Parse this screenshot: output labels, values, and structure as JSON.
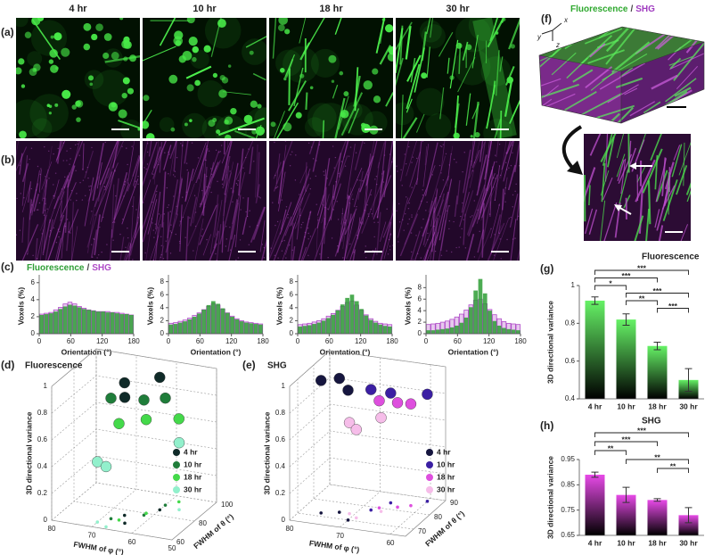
{
  "columns": [
    "4 hr",
    "10 hr",
    "18 hr",
    "30 hr"
  ],
  "panel_labels": [
    "(a)",
    "(b)",
    "(c)",
    "(d)",
    "(e)",
    "(f)",
    "(g)",
    "(h)"
  ],
  "panel_f": {
    "title": {
      "fluorescence": "Fluorescence",
      "separator": "/",
      "shg": "SHG"
    },
    "axes": [
      "x",
      "y",
      "z"
    ]
  },
  "chart_data": [
    {
      "type": "histogram",
      "bins": [
        0,
        9,
        18,
        27,
        36,
        45,
        54,
        63,
        72,
        81,
        90,
        99,
        108,
        117,
        126,
        135,
        144,
        153,
        162,
        171,
        180
      ],
      "series": [
        {
          "name": "Fluorescence",
          "color": "#2e9e35",
          "values": [
            2.2,
            2.3,
            2.4,
            2.6,
            2.9,
            3.2,
            3.4,
            3.3,
            3.1,
            2.9,
            2.8,
            2.7,
            2.6,
            2.6,
            2.5,
            2.5,
            2.4,
            2.3,
            2.3,
            2.2
          ]
        },
        {
          "name": "SHG",
          "color": "#b04cc8",
          "values": [
            2.3,
            2.4,
            2.5,
            2.8,
            3.1,
            3.5,
            3.7,
            3.5,
            3.2,
            3.0,
            2.8,
            2.7,
            2.6,
            2.6,
            2.6,
            2.5,
            2.5,
            2.4,
            2.3,
            2.2
          ]
        }
      ],
      "legend_separator": "/",
      "xlim": [
        0,
        180
      ],
      "xticks": [
        0,
        60,
        120,
        180
      ],
      "ylim": [
        0,
        6.5
      ],
      "yticks": [
        0,
        2,
        4,
        6
      ],
      "xlabel": "Orientation (°)",
      "ylabel": "Voxels (%)"
    },
    {
      "type": "histogram",
      "bins": [
        0,
        9,
        18,
        27,
        36,
        45,
        54,
        63,
        72,
        81,
        90,
        99,
        108,
        117,
        126,
        135,
        144,
        153,
        162,
        171,
        180
      ],
      "series": [
        {
          "color": "#2e9e35",
          "values": [
            1.4,
            1.5,
            1.7,
            1.9,
            2.2,
            2.6,
            3.1,
            3.7,
            4.4,
            5.0,
            4.6,
            3.9,
            3.2,
            2.6,
            2.2,
            1.9,
            1.7,
            1.6,
            1.5,
            1.4
          ]
        },
        {
          "color": "#b04cc8",
          "values": [
            1.6,
            1.7,
            1.9,
            2.1,
            2.4,
            2.8,
            3.2,
            3.7,
            4.2,
            4.6,
            4.4,
            3.8,
            3.2,
            2.7,
            2.3,
            2.0,
            1.8,
            1.7,
            1.6,
            1.5
          ]
        }
      ],
      "xlim": [
        0,
        180
      ],
      "xticks": [
        0,
        60,
        120,
        180
      ],
      "ylim": [
        0,
        8.5
      ],
      "yticks": [
        0,
        2,
        4,
        6,
        8
      ],
      "xlabel": "Orientation (°)",
      "ylabel": "Voxels (%)"
    },
    {
      "type": "histogram",
      "bins": [
        0,
        9,
        18,
        27,
        36,
        45,
        54,
        63,
        72,
        81,
        90,
        99,
        108,
        117,
        126,
        135,
        144,
        153,
        162,
        171,
        180
      ],
      "series": [
        {
          "color": "#2e9e35",
          "values": [
            1.1,
            1.2,
            1.3,
            1.5,
            1.7,
            2.0,
            2.4,
            2.9,
            3.6,
            4.5,
            5.5,
            6.0,
            5.0,
            3.8,
            2.8,
            2.1,
            1.7,
            1.4,
            1.2,
            1.1
          ]
        },
        {
          "color": "#b04cc8",
          "values": [
            1.4,
            1.5,
            1.6,
            1.8,
            2.0,
            2.3,
            2.7,
            3.1,
            3.6,
            4.2,
            4.8,
            5.0,
            4.4,
            3.6,
            2.9,
            2.3,
            1.9,
            1.6,
            1.5,
            1.4
          ]
        }
      ],
      "xlim": [
        0,
        180
      ],
      "xticks": [
        0,
        60,
        120,
        180
      ],
      "ylim": [
        0,
        8.5
      ],
      "yticks": [
        0,
        2,
        4,
        6,
        8
      ],
      "xlabel": "Orientation (°)",
      "ylabel": "Voxels (%)"
    },
    {
      "type": "histogram",
      "bins": [
        0,
        9,
        18,
        27,
        36,
        45,
        54,
        63,
        72,
        81,
        90,
        99,
        108,
        117,
        126,
        135,
        144,
        153,
        162,
        171,
        180
      ],
      "series": [
        {
          "color": "#2e9e35",
          "values": [
            0.6,
            0.6,
            0.7,
            0.8,
            0.9,
            1.1,
            1.4,
            1.9,
            2.8,
            4.6,
            7.5,
            9.5,
            7.0,
            4.0,
            2.2,
            1.4,
            1.0,
            0.8,
            0.7,
            0.6
          ]
        },
        {
          "color": "#b04cc8",
          "values": [
            1.6,
            1.7,
            1.8,
            2.0,
            2.2,
            2.5,
            2.9,
            3.4,
            4.1,
            5.0,
            5.8,
            6.0,
            5.2,
            4.2,
            3.3,
            2.6,
            2.1,
            1.8,
            1.7,
            1.6
          ]
        }
      ],
      "xlim": [
        0,
        180
      ],
      "xticks": [
        0,
        60,
        120,
        180
      ],
      "ylim": [
        0,
        9.6
      ],
      "yticks": [
        0,
        2,
        4,
        6,
        8
      ],
      "xlabel": "Orientation (°)",
      "ylabel": "Voxels (%)"
    },
    {
      "type": "scatter3d",
      "title": "Fluorescence",
      "title_color": "#2ea82e",
      "xlabel": "FWHM of φ (°)",
      "ylabel": "FWHM of θ (°)",
      "zlabel": "3D directional variance",
      "xlim": [
        80,
        50
      ],
      "xticks": [
        80,
        70,
        60,
        50
      ],
      "ylim": [
        60,
        100
      ],
      "yticks": [
        60,
        80,
        100
      ],
      "zlim": [
        0,
        1
      ],
      "zticks": [
        0,
        0.2,
        0.4,
        0.6,
        0.8,
        1
      ],
      "series": [
        {
          "name": "4 hr",
          "color": "#0f2a28",
          "x": [
            66,
            60,
            64
          ],
          "y": [
            75,
            85,
            68
          ],
          "z": [
            0.99,
            0.99,
            0.94
          ]
        },
        {
          "name": "10 hr",
          "color": "#1f7d3a",
          "x": [
            68,
            62,
            60
          ],
          "y": [
            70,
            78,
            90
          ],
          "z": [
            0.9,
            0.86,
            0.8
          ]
        },
        {
          "name": "18 hr",
          "color": "#44d94a",
          "x": [
            66,
            62,
            58
          ],
          "y": [
            70,
            80,
            95
          ],
          "z": [
            0.72,
            0.7,
            0.62
          ]
        },
        {
          "name": "30 hr",
          "color": "#92f0cc",
          "x": [
            70,
            67,
            56
          ],
          "y": [
            65,
            62,
            88
          ],
          "z": [
            0.45,
            0.45,
            0.5
          ]
        }
      ]
    },
    {
      "type": "scatter3d",
      "title": "SHG",
      "title_color": "#a03cc0",
      "xlabel": "FWHM of φ (°)",
      "ylabel": "FWHM of θ (°)",
      "zlabel": "3D directional variance",
      "xlim": [
        80,
        57
      ],
      "xticks": [
        80,
        70,
        60
      ],
      "ylim": [
        65,
        90
      ],
      "yticks": [
        70,
        80,
        90
      ],
      "zlim": [
        0,
        1
      ],
      "zticks": [
        0,
        0.2,
        0.4,
        0.6,
        0.8,
        1
      ],
      "series": [
        {
          "name": "4 hr",
          "color": "#16163f",
          "x": [
            76,
            73,
            70
          ],
          "y": [
            72,
            74,
            70
          ],
          "z": [
            0.99,
            1.0,
            0.97
          ]
        },
        {
          "name": "10 hr",
          "color": "#3b1fa3",
          "x": [
            68,
            66,
            60
          ],
          "y": [
            78,
            84,
            88
          ],
          "z": [
            0.9,
            0.82,
            0.8
          ]
        },
        {
          "name": "18 hr",
          "color": "#de4fde",
          "x": [
            67,
            64,
            62
          ],
          "y": [
            80,
            82,
            84
          ],
          "z": [
            0.8,
            0.78,
            0.76
          ]
        },
        {
          "name": "30 hr",
          "color": "#f6bde9",
          "x": [
            71,
            69,
            66
          ],
          "y": [
            74,
            72,
            78
          ],
          "z": [
            0.68,
            0.66,
            0.7
          ]
        }
      ]
    },
    {
      "type": "bar",
      "title": "Fluorescence",
      "title_color": "#2ea82e",
      "categories": [
        "4 hr",
        "10 hr",
        "18 hr",
        "30 hr"
      ],
      "values": [
        0.92,
        0.82,
        0.68,
        0.5
      ],
      "errors": [
        0.02,
        0.03,
        0.02,
        0.06
      ],
      "color": "#66f266",
      "gradient_to": "#000000",
      "ylim": [
        0.4,
        1
      ],
      "yticks": [
        0.4,
        0.6,
        0.8,
        1
      ],
      "ylabel": "3D directional variance",
      "significance": [
        {
          "between": [
            "4 hr",
            "30 hr"
          ],
          "label": "***"
        },
        {
          "between": [
            "4 hr",
            "18 hr"
          ],
          "label": "***"
        },
        {
          "between": [
            "4 hr",
            "10 hr"
          ],
          "label": "*"
        },
        {
          "between": [
            "10 hr",
            "30 hr"
          ],
          "label": "***"
        },
        {
          "between": [
            "10 hr",
            "18 hr"
          ],
          "label": "**"
        },
        {
          "between": [
            "18 hr",
            "30 hr"
          ],
          "label": "***"
        }
      ]
    },
    {
      "type": "bar",
      "title": "SHG",
      "title_color": "#a03cc0",
      "categories": [
        "4 hr",
        "10 hr",
        "18 hr",
        "30 hr"
      ],
      "values": [
        0.89,
        0.81,
        0.79,
        0.73
      ],
      "errors": [
        0.01,
        0.03,
        0.005,
        0.03
      ],
      "color": "#e84ae8",
      "gradient_to": "#000000",
      "ylim": [
        0.65,
        0.95
      ],
      "yticks": [
        0.65,
        0.75,
        0.85,
        0.95
      ],
      "ylabel": "3D directional variance",
      "significance": [
        {
          "between": [
            "4 hr",
            "30 hr"
          ],
          "label": "***"
        },
        {
          "between": [
            "4 hr",
            "18 hr"
          ],
          "label": "***"
        },
        {
          "between": [
            "4 hr",
            "10 hr"
          ],
          "label": "**"
        },
        {
          "between": [
            "10 hr",
            "30 hr"
          ],
          "label": "**"
        },
        {
          "between": [
            "18 hr",
            "30 hr"
          ],
          "label": "**"
        }
      ]
    }
  ]
}
